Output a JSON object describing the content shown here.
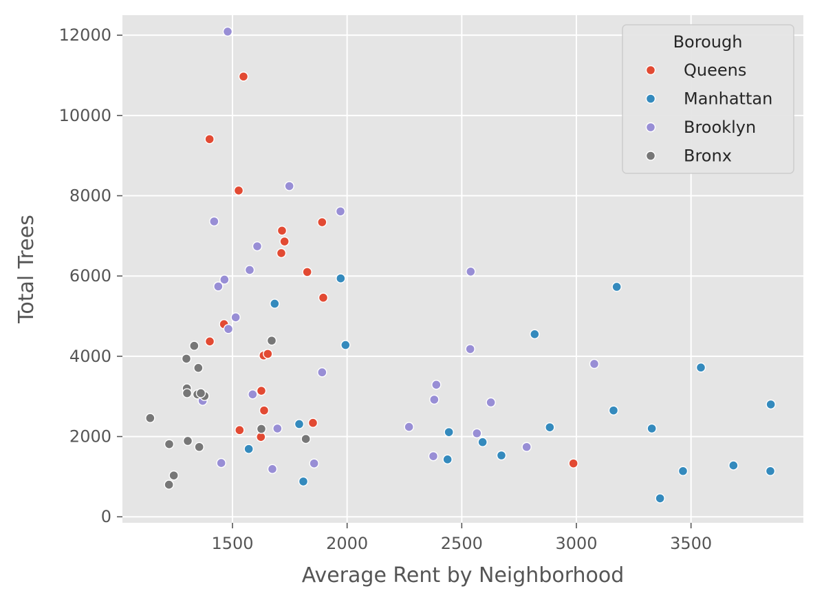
{
  "chart_data": {
    "type": "scatter",
    "xlabel": "Average Rent by Neighborhood",
    "ylabel": "Total Trees",
    "xlim": [
      1020,
      3990
    ],
    "ylim": [
      -150,
      12500
    ],
    "xticks": [
      1500,
      2000,
      2500,
      3000,
      3500
    ],
    "yticks": [
      0,
      2000,
      4000,
      6000,
      8000,
      10000,
      12000
    ],
    "grid": true,
    "legend_title": "Borough",
    "legend_position": "top-right",
    "series": [
      {
        "name": "Queens",
        "color": "#E24A33",
        "points": [
          [
            1548,
            10970
          ],
          [
            1400,
            9410
          ],
          [
            1527,
            8130
          ],
          [
            1716,
            7130
          ],
          [
            1891,
            7340
          ],
          [
            1727,
            6860
          ],
          [
            1713,
            6570
          ],
          [
            1826,
            6100
          ],
          [
            1896,
            5460
          ],
          [
            1463,
            4800
          ],
          [
            1401,
            4370
          ],
          [
            1636,
            4020
          ],
          [
            1654,
            4060
          ],
          [
            1626,
            3140
          ],
          [
            1638,
            2650
          ],
          [
            1531,
            2160
          ],
          [
            1624,
            1990
          ],
          [
            1851,
            2340
          ],
          [
            2987,
            1330
          ]
        ]
      },
      {
        "name": "Manhattan",
        "color": "#348ABD",
        "points": [
          [
            1972,
            5940
          ],
          [
            1684,
            5310
          ],
          [
            1993,
            4280
          ],
          [
            1791,
            2310
          ],
          [
            1571,
            1690
          ],
          [
            1809,
            880
          ],
          [
            2444,
            2110
          ],
          [
            2438,
            1430
          ],
          [
            2591,
            1860
          ],
          [
            2673,
            1530
          ],
          [
            2818,
            4550
          ],
          [
            2884,
            2230
          ],
          [
            3176,
            5730
          ],
          [
            3162,
            2650
          ],
          [
            3329,
            2200
          ],
          [
            3365,
            460
          ],
          [
            3465,
            1140
          ],
          [
            3543,
            3720
          ],
          [
            3685,
            1280
          ],
          [
            3848,
            2800
          ],
          [
            3846,
            1140
          ]
        ]
      },
      {
        "name": "Brooklyn",
        "color": "#988ED5",
        "points": [
          [
            1479,
            12090
          ],
          [
            1748,
            8240
          ],
          [
            1971,
            7610
          ],
          [
            1420,
            7360
          ],
          [
            1608,
            6740
          ],
          [
            1575,
            6150
          ],
          [
            1465,
            5910
          ],
          [
            1438,
            5740
          ],
          [
            1514,
            4970
          ],
          [
            1482,
            4680
          ],
          [
            1891,
            3600
          ],
          [
            2539,
            6110
          ],
          [
            2537,
            4180
          ],
          [
            3078,
            3810
          ],
          [
            2389,
            3290
          ],
          [
            2380,
            2920
          ],
          [
            2627,
            2850
          ],
          [
            1588,
            3050
          ],
          [
            1370,
            2890
          ],
          [
            1696,
            2200
          ],
          [
            2566,
            2080
          ],
          [
            2270,
            2240
          ],
          [
            2376,
            1510
          ],
          [
            2783,
            1740
          ],
          [
            1451,
            1340
          ],
          [
            1674,
            1190
          ],
          [
            1856,
            1330
          ]
        ]
      },
      {
        "name": "Bronx",
        "color": "#777777",
        "points": [
          [
            1333,
            4260
          ],
          [
            1671,
            4390
          ],
          [
            1299,
            3940
          ],
          [
            1351,
            3710
          ],
          [
            1301,
            3200
          ],
          [
            1302,
            3080
          ],
          [
            1347,
            3050
          ],
          [
            1378,
            3010
          ],
          [
            1362,
            3080
          ],
          [
            1141,
            2460
          ],
          [
            1224,
            1810
          ],
          [
            1305,
            1890
          ],
          [
            1355,
            1740
          ],
          [
            1626,
            2190
          ],
          [
            1820,
            1940
          ],
          [
            1244,
            1030
          ],
          [
            1223,
            800
          ]
        ]
      }
    ]
  }
}
